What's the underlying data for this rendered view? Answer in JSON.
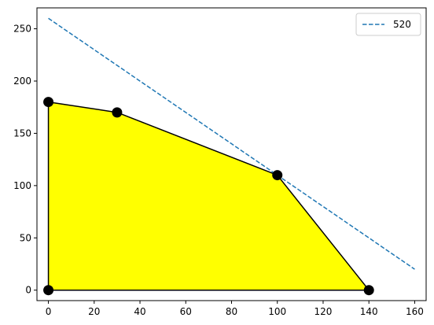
{
  "chart_data": {
    "type": "line",
    "title": "",
    "xlabel": "",
    "ylabel": "",
    "xlim": [
      -5,
      165
    ],
    "ylim": [
      -10,
      270
    ],
    "x_ticks": [
      0,
      20,
      40,
      60,
      80,
      100,
      120,
      140,
      160
    ],
    "y_ticks": [
      0,
      50,
      100,
      150,
      200,
      250
    ],
    "grid": false,
    "legend": {
      "placement": "top-right",
      "entries": [
        "520"
      ]
    },
    "feasible_region": {
      "fill_color": "#ffff00",
      "edge_color": "#000000",
      "vertices": [
        {
          "x": 0,
          "y": 0
        },
        {
          "x": 0,
          "y": 180
        },
        {
          "x": 30,
          "y": 170
        },
        {
          "x": 100,
          "y": 110
        },
        {
          "x": 140,
          "y": 0
        }
      ]
    },
    "vertex_points_color": "#000000",
    "series": [
      {
        "name": "520",
        "style": "dashed",
        "color": "#1f77b4",
        "x": [
          0,
          160
        ],
        "y": [
          260,
          20
        ]
      }
    ]
  }
}
